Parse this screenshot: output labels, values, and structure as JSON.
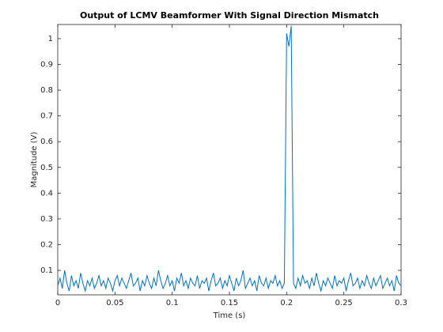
{
  "chart_data": {
    "type": "line",
    "title": "Output of LCMV Beamformer With Signal Direction Mismatch",
    "xlabel": "Time (s)",
    "ylabel": "Magnitude (V)",
    "color": "#0072bd",
    "xlim": [
      0,
      0.3
    ],
    "ylim": [
      0.005,
      1.055
    ],
    "xticks": [
      0,
      0.05,
      0.1,
      0.15,
      0.2,
      0.25,
      0.3
    ],
    "yticks": [
      0.1,
      0.2,
      0.3,
      0.4,
      0.5,
      0.6,
      0.7,
      0.8,
      0.9,
      1
    ],
    "x": [
      0,
      0.002,
      0.004,
      0.006,
      0.008,
      0.01,
      0.012,
      0.014,
      0.016,
      0.018,
      0.02,
      0.022,
      0.024,
      0.026,
      0.028,
      0.03,
      0.032,
      0.034,
      0.036,
      0.038,
      0.04,
      0.042,
      0.044,
      0.046,
      0.048,
      0.05,
      0.052,
      0.054,
      0.056,
      0.058,
      0.06,
      0.062,
      0.064,
      0.066,
      0.068,
      0.07,
      0.072,
      0.074,
      0.076,
      0.078,
      0.08,
      0.082,
      0.084,
      0.086,
      0.088,
      0.09,
      0.092,
      0.094,
      0.096,
      0.098,
      0.1,
      0.102,
      0.104,
      0.106,
      0.108,
      0.11,
      0.112,
      0.114,
      0.116,
      0.118,
      0.12,
      0.122,
      0.124,
      0.126,
      0.128,
      0.13,
      0.132,
      0.134,
      0.136,
      0.138,
      0.14,
      0.142,
      0.144,
      0.146,
      0.148,
      0.15,
      0.152,
      0.154,
      0.156,
      0.158,
      0.16,
      0.162,
      0.164,
      0.166,
      0.168,
      0.17,
      0.172,
      0.174,
      0.176,
      0.178,
      0.18,
      0.182,
      0.184,
      0.186,
      0.188,
      0.19,
      0.192,
      0.194,
      0.196,
      0.198,
      0.2,
      0.202,
      0.204,
      0.206,
      0.208,
      0.21,
      0.212,
      0.214,
      0.216,
      0.218,
      0.22,
      0.222,
      0.224,
      0.226,
      0.228,
      0.23,
      0.232,
      0.234,
      0.236,
      0.238,
      0.24,
      0.242,
      0.244,
      0.246,
      0.248,
      0.25,
      0.252,
      0.254,
      0.256,
      0.258,
      0.26,
      0.262,
      0.264,
      0.266,
      0.268,
      0.27,
      0.272,
      0.274,
      0.276,
      0.278,
      0.28,
      0.282,
      0.284,
      0.286,
      0.288,
      0.29,
      0.292,
      0.294,
      0.296,
      0.298,
      0.3
    ],
    "values": [
      0.04,
      0.07,
      0.03,
      0.1,
      0.05,
      0.02,
      0.08,
      0.04,
      0.06,
      0.03,
      0.09,
      0.05,
      0.02,
      0.06,
      0.04,
      0.07,
      0.03,
      0.05,
      0.08,
      0.04,
      0.06,
      0.03,
      0.07,
      0.05,
      0.02,
      0.06,
      0.08,
      0.04,
      0.07,
      0.05,
      0.03,
      0.06,
      0.09,
      0.04,
      0.05,
      0.07,
      0.02,
      0.06,
      0.04,
      0.08,
      0.05,
      0.03,
      0.07,
      0.04,
      0.1,
      0.06,
      0.03,
      0.05,
      0.08,
      0.04,
      0.06,
      0.02,
      0.07,
      0.05,
      0.09,
      0.04,
      0.06,
      0.03,
      0.07,
      0.05,
      0.04,
      0.08,
      0.03,
      0.06,
      0.05,
      0.07,
      0.02,
      0.06,
      0.09,
      0.04,
      0.05,
      0.07,
      0.03,
      0.06,
      0.04,
      0.08,
      0.05,
      0.02,
      0.07,
      0.04,
      0.06,
      0.1,
      0.03,
      0.05,
      0.07,
      0.04,
      0.06,
      0.02,
      0.08,
      0.05,
      0.04,
      0.07,
      0.03,
      0.06,
      0.05,
      0.08,
      0.04,
      0.06,
      0.03,
      0.05,
      1.02,
      0.97,
      1.05,
      0.05,
      0.03,
      0.07,
      0.04,
      0.08,
      0.05,
      0.06,
      0.03,
      0.07,
      0.04,
      0.09,
      0.05,
      0.02,
      0.06,
      0.04,
      0.07,
      0.05,
      0.03,
      0.08,
      0.04,
      0.06,
      0.05,
      0.07,
      0.02,
      0.06,
      0.09,
      0.04,
      0.05,
      0.07,
      0.03,
      0.06,
      0.04,
      0.08,
      0.05,
      0.03,
      0.07,
      0.04,
      0.06,
      0.08,
      0.03,
      0.05,
      0.07,
      0.04,
      0.06,
      0.02,
      0.08,
      0.05,
      0.04
    ]
  }
}
